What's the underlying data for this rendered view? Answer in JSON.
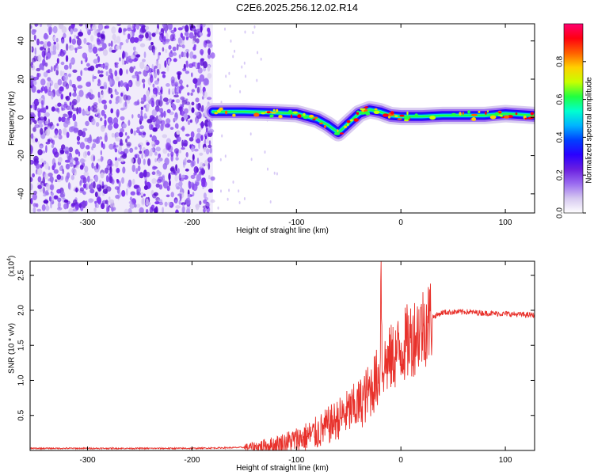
{
  "title": "C2E6.2025.256.12.02.R14",
  "chart_data": [
    {
      "type": "heatmap",
      "xlabel": "Height of straight line (km)",
      "ylabel": "Frequency (Hz)",
      "xlim": [
        -355,
        128
      ],
      "ylim": [
        -50,
        49
      ],
      "x_ticks": [
        -300,
        -200,
        -100,
        0,
        100
      ],
      "y_ticks": [
        -40,
        -20,
        0,
        20,
        40
      ],
      "grid": false,
      "noise_region_x": [
        -355,
        -180
      ],
      "signal_band": {
        "x": [
          -180,
          -150,
          -120,
          -100,
          -80,
          -70,
          -60,
          -50,
          -40,
          -30,
          -20,
          -10,
          0,
          20,
          40,
          60,
          80,
          100,
          128
        ],
        "center_hz": [
          3,
          3,
          2.5,
          2,
          -1,
          -4,
          -8,
          -3,
          2,
          4,
          3,
          1,
          0.5,
          0.5,
          1,
          1,
          1,
          2,
          1
        ]
      },
      "colorbar": {
        "label": "Normalized spectral amplitude",
        "range": [
          0,
          1
        ],
        "ticks": [
          "0.0",
          "0.2",
          "0.4",
          "0.6",
          "0.8"
        ],
        "colors": [
          "#ffffff",
          "#d6c8f0",
          "#9b6cf0",
          "#6a1fe0",
          "#2a00ff",
          "#0040ff",
          "#00b4ff",
          "#00ffd0",
          "#20ff40",
          "#c8ff00",
          "#ffd000",
          "#ff6000",
          "#ff0010",
          "#ff0070"
        ]
      }
    },
    {
      "type": "line",
      "xlabel": "Height of straight line (km)",
      "ylabel": "SNR (10 * v/v)",
      "multiplier_label": "(x10",
      "multiplier_exp": "4",
      "xlim": [
        -355,
        128
      ],
      "ylim": [
        0,
        2.7
      ],
      "x_ticks": [
        -300,
        -200,
        -100,
        0,
        100
      ],
      "y_ticks": [
        0.5,
        1.0,
        1.5,
        2.0,
        2.5
      ],
      "y_tick_labels": [
        "0.5",
        "1.0",
        "1.5",
        "2.0",
        "2.5"
      ],
      "color": "#e8302a",
      "series": [
        {
          "x": [
            -355,
            -200,
            -160,
            -140,
            -120,
            -100,
            -80,
            -60,
            -50,
            -40,
            -30,
            -20,
            -19,
            -18,
            -10,
            0,
            10,
            20,
            30,
            40,
            60,
            80,
            100,
            128
          ],
          "values": [
            0.03,
            0.03,
            0.04,
            0.05,
            0.08,
            0.15,
            0.25,
            0.45,
            0.55,
            0.65,
            0.85,
            1.1,
            2.7,
            1.2,
            1.3,
            1.45,
            1.6,
            1.75,
            1.9,
            1.97,
            1.98,
            1.96,
            1.95,
            1.93
          ]
        }
      ]
    }
  ]
}
